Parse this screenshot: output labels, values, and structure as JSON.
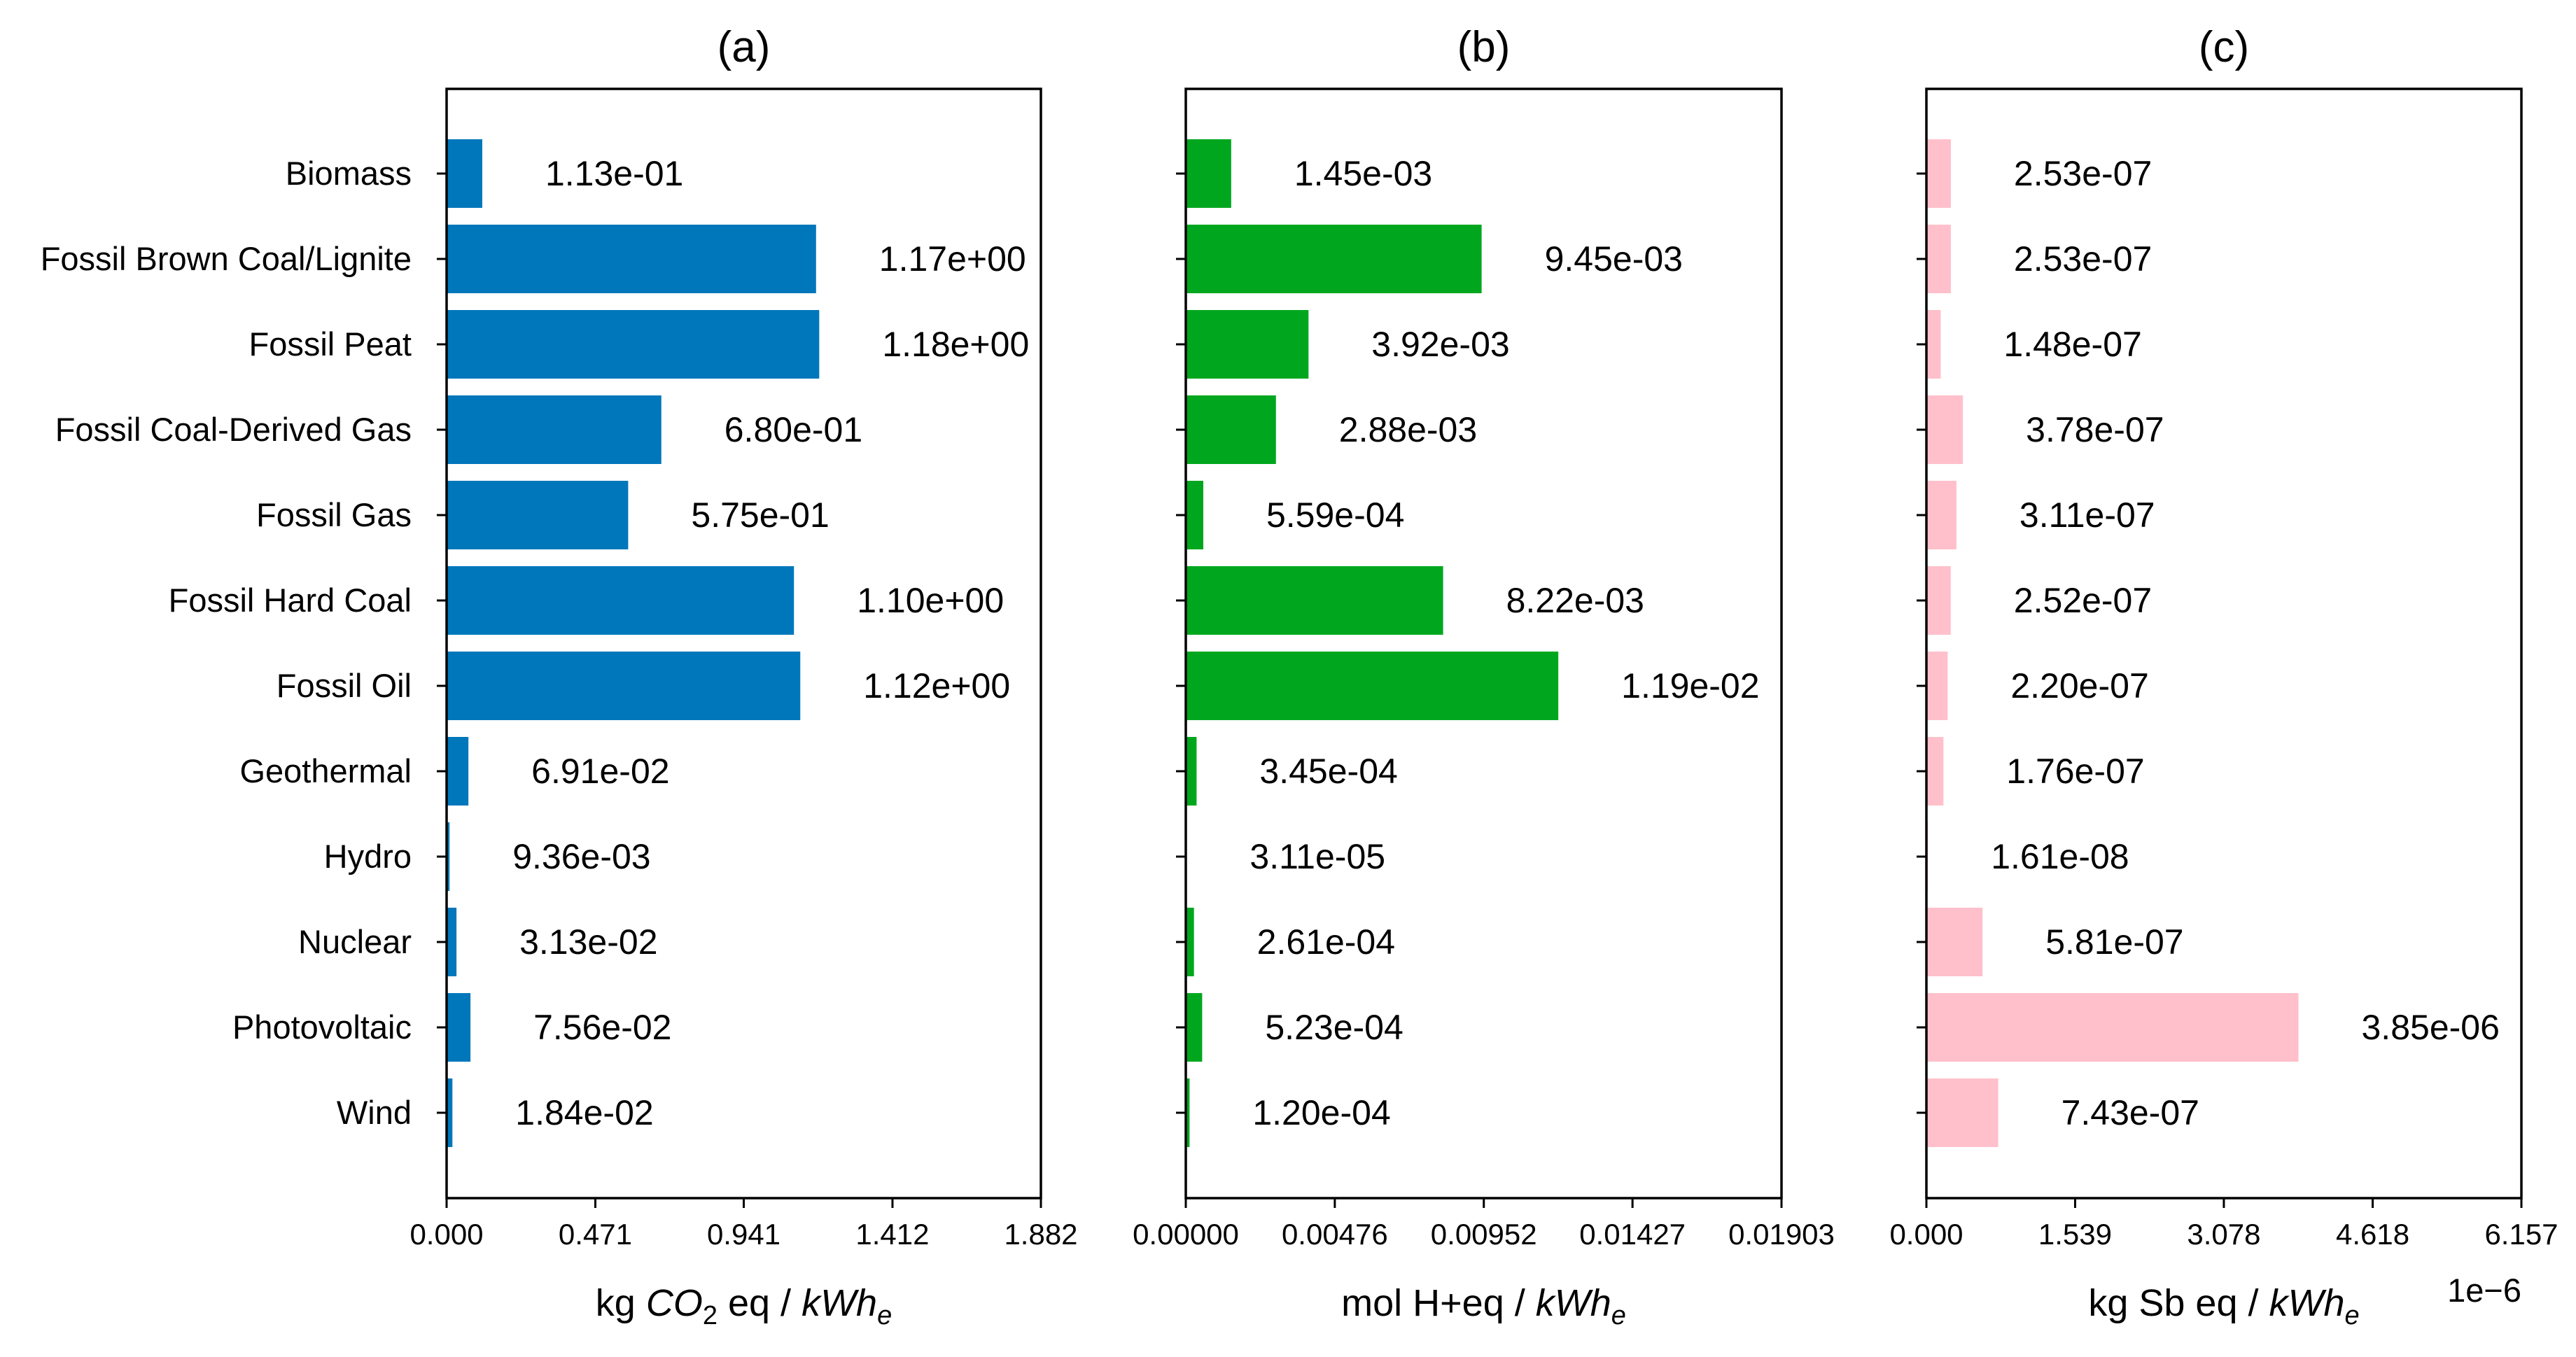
{
  "categories": [
    "Biomass",
    "Fossil Brown Coal/Lignite",
    "Fossil Peat",
    "Fossil Coal-Derived Gas",
    "Fossil Gas",
    "Fossil Hard Coal",
    "Fossil Oil",
    "Geothermal",
    "Hydro",
    "Nuclear",
    "Photovoltaic",
    "Wind"
  ],
  "chart_data": [
    {
      "type": "bar",
      "orientation": "horizontal",
      "title": "(a)",
      "xlabel_parts": [
        {
          "text": "kg ",
          "style": "normal",
          "shift": ""
        },
        {
          "text": "CO",
          "style": "italic",
          "shift": ""
        },
        {
          "text": "2",
          "style": "normal",
          "shift": "sub"
        },
        {
          "text": " eq / ",
          "style": "normal",
          "shift": ""
        },
        {
          "text": "kWh",
          "style": "italic",
          "shift": ""
        },
        {
          "text": "e",
          "style": "italic",
          "shift": "sub"
        }
      ],
      "xlim": [
        0,
        1.882
      ],
      "xticks": [
        0,
        0.471,
        0.941,
        1.412,
        1.882
      ],
      "xtick_labels": [
        "0.000",
        "0.471",
        "0.941",
        "1.412",
        "1.882"
      ],
      "values": [
        0.113,
        1.17,
        1.18,
        0.68,
        0.575,
        1.1,
        1.12,
        0.0691,
        0.00936,
        0.0313,
        0.0756,
        0.0184
      ],
      "value_labels": [
        "1.13e-01",
        "1.17e+00",
        "1.18e+00",
        "6.80e-01",
        "5.75e-01",
        "1.10e+00",
        "1.12e+00",
        "6.91e-02",
        "9.36e-03",
        "3.13e-02",
        "7.56e-02",
        "1.84e-02"
      ],
      "color": "#0077bb",
      "offset_label": ""
    },
    {
      "type": "bar",
      "orientation": "horizontal",
      "title": "(b)",
      "xlabel_parts": [
        {
          "text": "mol H+eq / ",
          "style": "normal",
          "shift": ""
        },
        {
          "text": "kWh",
          "style": "italic",
          "shift": ""
        },
        {
          "text": "e",
          "style": "italic",
          "shift": "sub"
        }
      ],
      "xlim": [
        0,
        0.01903
      ],
      "xticks": [
        0,
        0.00476,
        0.00952,
        0.01427,
        0.01903
      ],
      "xtick_labels": [
        "0.00000",
        "0.00476",
        "0.00952",
        "0.01427",
        "0.01903"
      ],
      "values": [
        0.00145,
        0.00945,
        0.00392,
        0.00288,
        0.000559,
        0.00822,
        0.0119,
        0.000345,
        3.11e-05,
        0.000261,
        0.000523,
        0.00012
      ],
      "value_labels": [
        "1.45e-03",
        "9.45e-03",
        "3.92e-03",
        "2.88e-03",
        "5.59e-04",
        "8.22e-03",
        "1.19e-02",
        "3.45e-04",
        "3.11e-05",
        "2.61e-04",
        "5.23e-04",
        "1.20e-04"
      ],
      "color": "#00a71e",
      "offset_label": ""
    },
    {
      "type": "bar",
      "orientation": "horizontal",
      "title": "(c)",
      "xlabel_parts": [
        {
          "text": "kg Sb eq / ",
          "style": "normal",
          "shift": ""
        },
        {
          "text": "kWh",
          "style": "italic",
          "shift": ""
        },
        {
          "text": "e",
          "style": "italic",
          "shift": "sub"
        }
      ],
      "xlim": [
        0,
        6.157e-06
      ],
      "xticks": [
        0,
        1.539e-06,
        3.078e-06,
        4.618e-06,
        6.157e-06
      ],
      "xtick_labels": [
        "0.000",
        "1.539",
        "3.078",
        "4.618",
        "6.157"
      ],
      "values": [
        2.53e-07,
        2.53e-07,
        1.48e-07,
        3.78e-07,
        3.11e-07,
        2.52e-07,
        2.2e-07,
        1.76e-07,
        1.61e-08,
        5.81e-07,
        3.85e-06,
        7.43e-07
      ],
      "value_labels": [
        "2.53e-07",
        "2.53e-07",
        "1.48e-07",
        "3.78e-07",
        "3.11e-07",
        "2.52e-07",
        "2.20e-07",
        "1.76e-07",
        "1.61e-08",
        "5.81e-07",
        "3.85e-06",
        "7.43e-07"
      ],
      "color": "#ffc0cb",
      "offset_label": "1e−6"
    }
  ]
}
